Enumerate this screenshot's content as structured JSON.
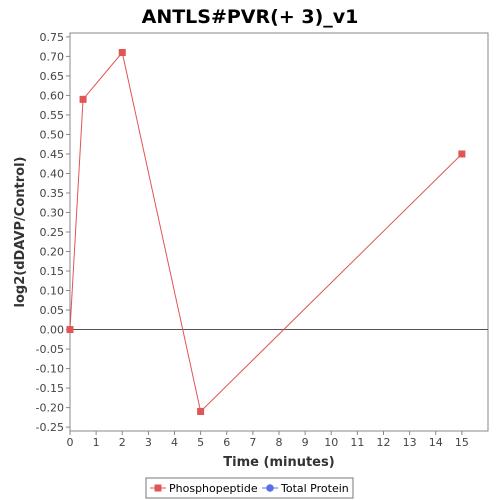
{
  "chart_data": {
    "type": "line",
    "title": "ANTLS#PVR(+ 3)_v1",
    "xlabel": "Time (minutes)",
    "ylabel": "log2(dDAVP/Control)",
    "xlim": [
      0,
      16
    ],
    "ylim": [
      -0.26,
      0.76
    ],
    "x_ticks": [
      0,
      1,
      2,
      3,
      4,
      5,
      6,
      7,
      8,
      9,
      10,
      11,
      12,
      13,
      14,
      15
    ],
    "y_ticks": [
      -0.25,
      -0.2,
      -0.15,
      -0.1,
      -0.05,
      0.0,
      0.05,
      0.1,
      0.15,
      0.2,
      0.25,
      0.3,
      0.35,
      0.4,
      0.45,
      0.5,
      0.55,
      0.6,
      0.65,
      0.7,
      0.75
    ],
    "y_tick_labels": [
      "-0.25",
      "-0.20",
      "-0.15",
      "-0.10",
      "-0.05",
      "0.00",
      "0.05",
      "0.10",
      "0.15",
      "0.20",
      "0.25",
      "0.30",
      "0.35",
      "0.40",
      "0.45",
      "0.50",
      "0.55",
      "0.60",
      "0.65",
      "0.70",
      "0.75"
    ],
    "zero_line": true,
    "grid": false,
    "legend_position": "bottom",
    "series": [
      {
        "name": "Phosphopeptide",
        "color": "#e05555",
        "marker": "square",
        "x": [
          0,
          0.5,
          2,
          5,
          15
        ],
        "y": [
          0.0,
          0.59,
          0.71,
          -0.21,
          0.45
        ]
      },
      {
        "name": "Total Protein",
        "color": "#5b6ee8",
        "marker": "circle",
        "x": [],
        "y": []
      }
    ]
  }
}
